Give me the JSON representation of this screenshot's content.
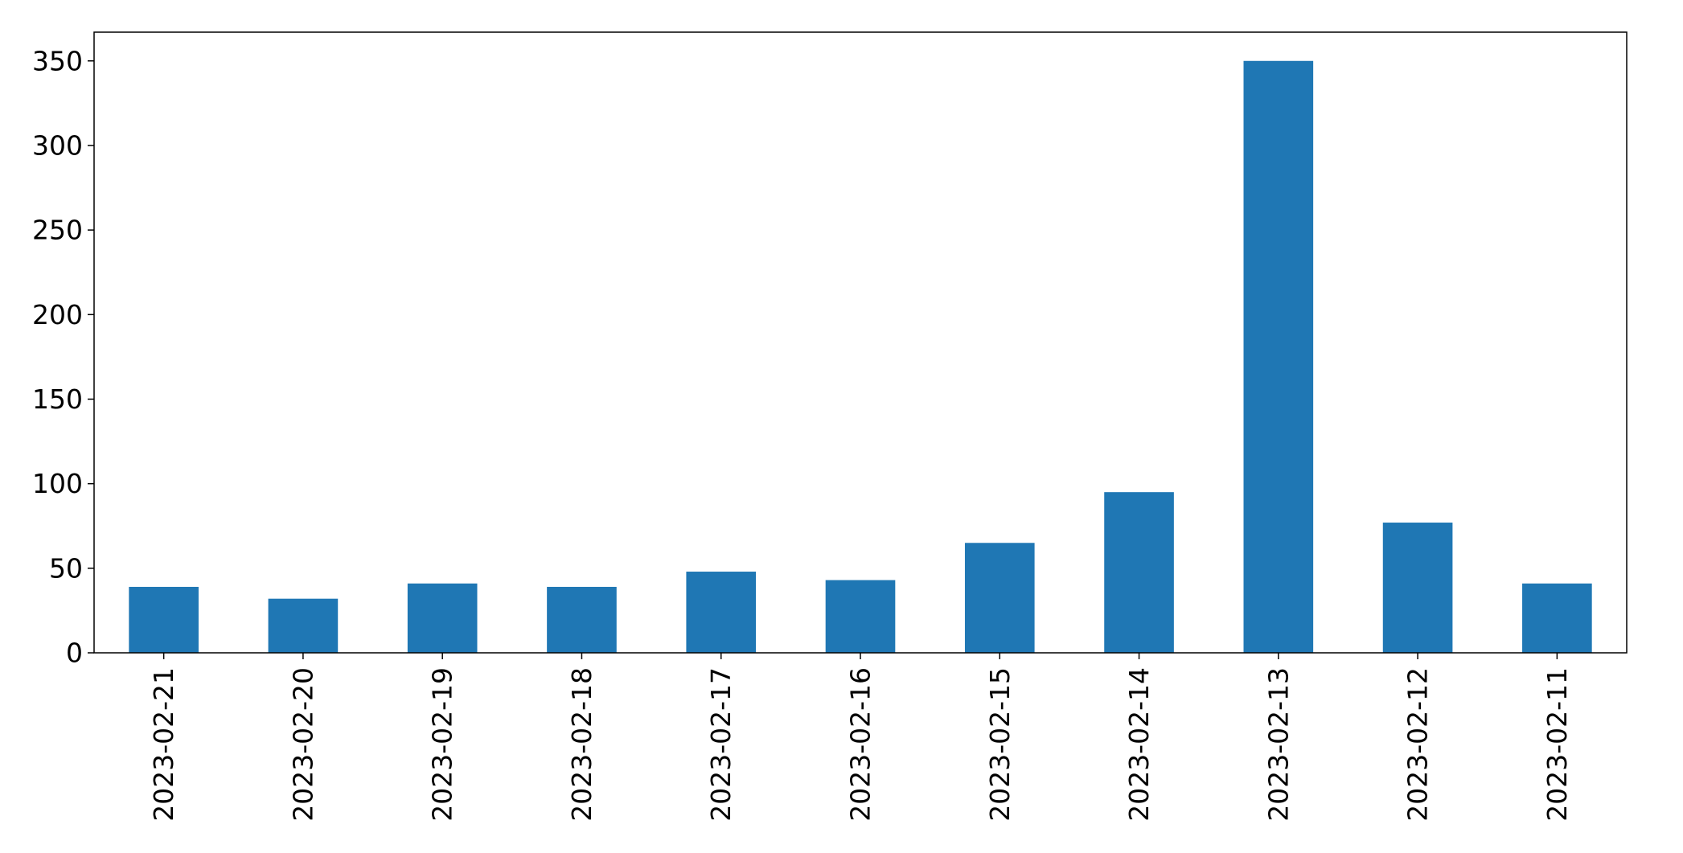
{
  "chart_data": {
    "type": "bar",
    "categories": [
      "2023-02-21",
      "2023-02-20",
      "2023-02-19",
      "2023-02-18",
      "2023-02-17",
      "2023-02-16",
      "2023-02-15",
      "2023-02-14",
      "2023-02-13",
      "2023-02-12",
      "2023-02-11"
    ],
    "values": [
      39,
      32,
      41,
      39,
      48,
      43,
      65,
      95,
      350,
      77,
      41
    ],
    "title": "",
    "xlabel": "",
    "ylabel": "",
    "ylim": [
      0,
      367
    ],
    "yticks": [
      0,
      50,
      100,
      150,
      200,
      250,
      300,
      350
    ],
    "bar_color": "#1f77b4",
    "grid": false,
    "legend": "none"
  }
}
